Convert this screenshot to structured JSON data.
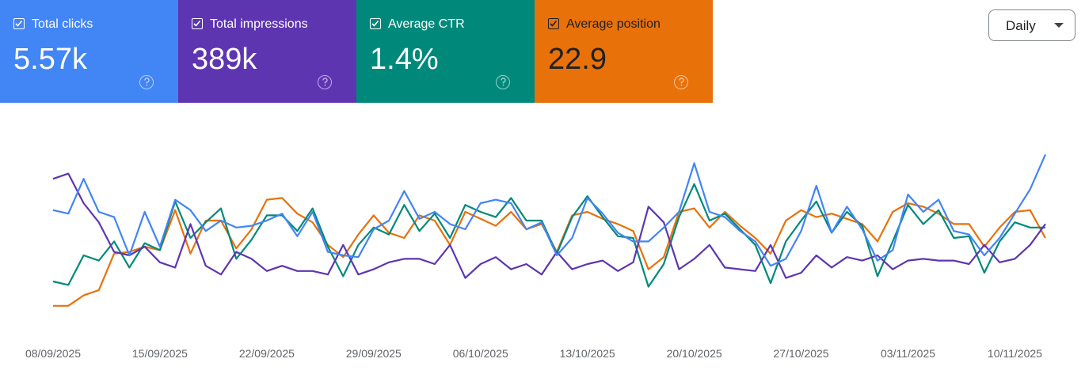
{
  "chart_data": {
    "type": "line",
    "period": "Daily",
    "categories": [
      "08/09/2025",
      null,
      null,
      null,
      null,
      null,
      null,
      "15/09/2025",
      null,
      null,
      null,
      null,
      null,
      null,
      "22/09/2025",
      null,
      null,
      null,
      null,
      null,
      null,
      "29/09/2025",
      null,
      null,
      null,
      null,
      null,
      null,
      "06/10/2025",
      null,
      null,
      null,
      null,
      null,
      null,
      "13/10/2025",
      null,
      null,
      null,
      null,
      null,
      null,
      "20/10/2025",
      null,
      null,
      null,
      null,
      null,
      null,
      "27/10/2025",
      null,
      null,
      null,
      null,
      null,
      null,
      "03/11/2025",
      null,
      null,
      null,
      null,
      null,
      null,
      "10/11/2025",
      null,
      null
    ],
    "ylim": [
      0,
      100
    ],
    "series": [
      {
        "name": "Total clicks",
        "total": "5.57k",
        "color": "#4285f4",
        "values": [
          61,
          59,
          79,
          60,
          57,
          35,
          60,
          40,
          67,
          61,
          49,
          55,
          51,
          52,
          55,
          59,
          46,
          60,
          37,
          35,
          34,
          50,
          55,
          72,
          56,
          60,
          53,
          50,
          65,
          67,
          65,
          50,
          54,
          35,
          45,
          68,
          59,
          48,
          43,
          43,
          51,
          60,
          88,
          60,
          57,
          49,
          43,
          29,
          33,
          49,
          75,
          48,
          63,
          50,
          32,
          38,
          70,
          60,
          67,
          49,
          47,
          35,
          45,
          59,
          73,
          93
        ]
      },
      {
        "name": "Total impressions",
        "total": "389k",
        "color": "#5e35b1",
        "values": [
          79,
          82,
          65,
          54,
          37,
          35,
          40,
          31,
          28,
          53,
          29,
          24,
          37,
          33,
          26,
          29,
          26,
          26,
          24,
          41,
          24,
          27,
          31,
          33,
          33,
          30,
          41,
          22,
          30,
          34,
          27,
          30,
          24,
          37,
          27,
          30,
          32,
          26,
          31,
          63,
          54,
          27,
          33,
          41,
          28,
          27,
          26,
          41,
          22,
          25,
          35,
          28,
          34,
          32,
          35,
          27,
          32,
          33,
          32,
          32,
          30,
          41,
          31,
          33,
          41,
          53
        ]
      },
      {
        "name": "Average CTR",
        "total": "1.4%",
        "color": "#00897b",
        "values": [
          20,
          18,
          35,
          32,
          43,
          28,
          42,
          38,
          66,
          45,
          54,
          62,
          33,
          44,
          58,
          58,
          49,
          62,
          40,
          23,
          41,
          51,
          47,
          64,
          49,
          59,
          45,
          64,
          60,
          57,
          68,
          55,
          55,
          36,
          57,
          69,
          57,
          46,
          45,
          17,
          30,
          57,
          76,
          55,
          59,
          50,
          41,
          19,
          43,
          55,
          66,
          48,
          60,
          52,
          23,
          43,
          64,
          53,
          61,
          45,
          46,
          25,
          43,
          54,
          51,
          51
        ]
      },
      {
        "name": "Average position",
        "total": "22.9",
        "color": "#e8710a",
        "values": [
          6,
          6,
          12,
          15,
          36,
          37,
          40,
          38,
          61,
          36,
          55,
          55,
          39,
          50,
          67,
          68,
          59,
          54,
          41,
          34,
          47,
          58,
          48,
          45,
          58,
          55,
          41,
          60,
          56,
          52,
          60,
          50,
          53,
          37,
          58,
          60,
          56,
          53,
          49,
          27,
          34,
          60,
          62,
          51,
          60,
          52,
          45,
          36,
          55,
          61,
          57,
          59,
          56,
          53,
          43,
          60,
          65,
          63,
          59,
          53,
          53,
          40,
          51,
          60,
          61,
          45
        ]
      }
    ]
  }
}
